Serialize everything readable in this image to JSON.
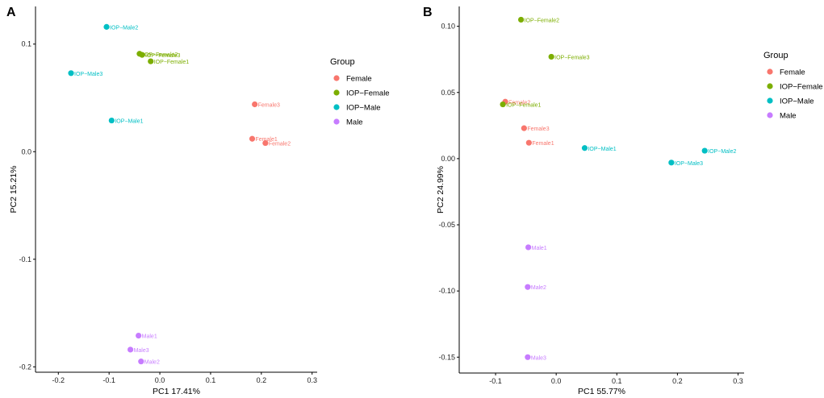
{
  "chart_data": [
    {
      "type": "scatter",
      "panel": "A",
      "xlabel": "PC1 17.41%",
      "ylabel": "PC2 15.21%",
      "xlim": [
        -0.245,
        0.31
      ],
      "ylim": [
        -0.205,
        0.135
      ],
      "xticks": [
        -0.2,
        -0.1,
        0.0,
        0.1,
        0.2,
        0.3
      ],
      "xtick_labels": [
        "-0.2",
        "-0.1",
        "0.0",
        "0.1",
        "0.2",
        "0.3"
      ],
      "yticks": [
        -0.2,
        -0.1,
        0.0,
        0.1
      ],
      "ytick_labels": [
        "-0.2",
        "-0.1",
        "0.0",
        "0.1"
      ],
      "legend": {
        "title": "Group",
        "placement": "right",
        "items": [
          {
            "name": "Female",
            "color": "#F8766D"
          },
          {
            "name": "IOP−Female",
            "color": "#7CAE00"
          },
          {
            "name": "IOP−Male",
            "color": "#00BFC4"
          },
          {
            "name": "Male",
            "color": "#C77CFF"
          }
        ]
      },
      "points": [
        {
          "group": "IOP−Male",
          "label": "IOP−Male2",
          "x": -0.105,
          "y": 0.116
        },
        {
          "group": "IOP−Male",
          "label": "IOP−Male3",
          "x": -0.175,
          "y": 0.073
        },
        {
          "group": "IOP−Male",
          "label": "IOP−Male1",
          "x": -0.095,
          "y": 0.029
        },
        {
          "group": "IOP−Female",
          "label": "IOP−Female2",
          "x": -0.04,
          "y": 0.091
        },
        {
          "group": "IOP−Female",
          "label": "IOP−Female3",
          "x": -0.035,
          "y": 0.09
        },
        {
          "group": "IOP−Female",
          "label": "IOP−Female1",
          "x": -0.018,
          "y": 0.084
        },
        {
          "group": "Female",
          "label": "Female3",
          "x": 0.187,
          "y": 0.044
        },
        {
          "group": "Female",
          "label": "Female1",
          "x": 0.182,
          "y": 0.012
        },
        {
          "group": "Female",
          "label": "Female2",
          "x": 0.208,
          "y": 0.008
        },
        {
          "group": "Male",
          "label": "Male1",
          "x": -0.042,
          "y": -0.171
        },
        {
          "group": "Male",
          "label": "Male3",
          "x": -0.058,
          "y": -0.184
        },
        {
          "group": "Male",
          "label": "Male2",
          "x": -0.037,
          "y": -0.195
        }
      ]
    },
    {
      "type": "scatter",
      "panel": "B",
      "xlabel": "PC1 55.77%",
      "ylabel": "PC2 24.99%",
      "xlim": [
        -0.16,
        0.31
      ],
      "ylim": [
        -0.162,
        0.115
      ],
      "xticks": [
        -0.1,
        0.0,
        0.1,
        0.2,
        0.3
      ],
      "xtick_labels": [
        "-0.1",
        "0.0",
        "0.1",
        "0.2",
        "0.3"
      ],
      "yticks": [
        -0.15,
        -0.1,
        -0.05,
        0.0,
        0.05,
        0.1
      ],
      "ytick_labels": [
        "-0.15",
        "-0.10",
        "-0.05",
        "0.00",
        "0.05",
        "0.10"
      ],
      "legend": {
        "title": "Group",
        "placement": "right",
        "items": [
          {
            "name": "Female",
            "color": "#F8766D"
          },
          {
            "name": "IOP−Female",
            "color": "#7CAE00"
          },
          {
            "name": "IOP−Male",
            "color": "#00BFC4"
          },
          {
            "name": "Male",
            "color": "#C77CFF"
          }
        ]
      },
      "points": [
        {
          "group": "IOP−Female",
          "label": "IOP−Female2",
          "x": -0.058,
          "y": 0.105
        },
        {
          "group": "IOP−Female",
          "label": "IOP−Female3",
          "x": -0.008,
          "y": 0.077
        },
        {
          "group": "Female",
          "label": "Female2",
          "x": -0.084,
          "y": 0.043
        },
        {
          "group": "IOP−Female",
          "label": "IOP−Female1",
          "x": -0.088,
          "y": 0.041
        },
        {
          "group": "Female",
          "label": "Female3",
          "x": -0.053,
          "y": 0.023
        },
        {
          "group": "Female",
          "label": "Female1",
          "x": -0.045,
          "y": 0.012
        },
        {
          "group": "IOP−Male",
          "label": "IOP−Male1",
          "x": 0.047,
          "y": 0.008
        },
        {
          "group": "IOP−Male",
          "label": "IOP−Male2",
          "x": 0.245,
          "y": 0.006
        },
        {
          "group": "IOP−Male",
          "label": "IOP−Male3",
          "x": 0.19,
          "y": -0.003
        },
        {
          "group": "Male",
          "label": "Male1",
          "x": -0.046,
          "y": -0.067
        },
        {
          "group": "Male",
          "label": "Male2",
          "x": -0.047,
          "y": -0.097
        },
        {
          "group": "Male",
          "label": "Male3",
          "x": -0.047,
          "y": -0.15
        }
      ]
    }
  ]
}
